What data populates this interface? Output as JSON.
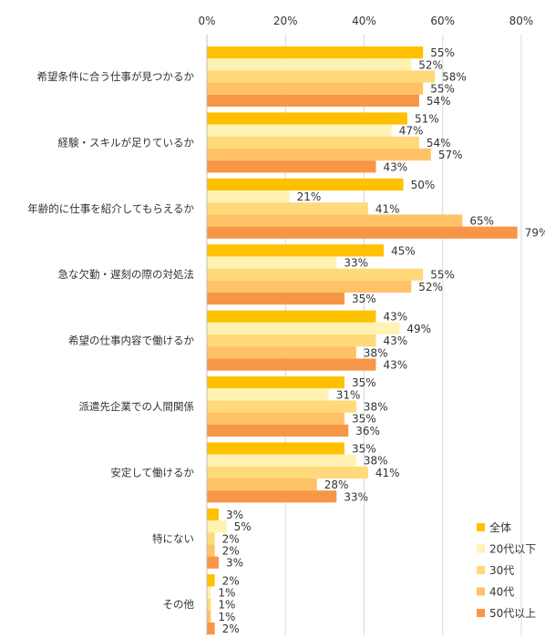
{
  "chart_data": {
    "type": "bar",
    "orientation": "horizontal",
    "title": "",
    "xlabel": "",
    "ylabel": "",
    "xlim": [
      0,
      80
    ],
    "x_ticks": [
      {
        "value": 0,
        "label": "0%"
      },
      {
        "value": 20,
        "label": "20%"
      },
      {
        "value": 40,
        "label": "40%"
      },
      {
        "value": 60,
        "label": "60%"
      },
      {
        "value": 80,
        "label": "80%"
      }
    ],
    "grid": true,
    "axis_position": "top",
    "legend_position": "bottom-right",
    "categories": [
      "希望条件に合う仕事が見つかるか",
      "経験・スキルが足りているか",
      "年齢的に仕事を紹介してもらえるか",
      "急な欠勤・遅刻の際の対処法",
      "希望の仕事内容で働けるか",
      "派遣先企業での人間関係",
      "安定して働けるか",
      "特にない",
      "その他"
    ],
    "series": [
      {
        "name": "全体",
        "color": "#FFC000",
        "values": [
          55,
          51,
          50,
          45,
          43,
          35,
          35,
          3,
          2
        ]
      },
      {
        "name": "20代以下",
        "color": "#FFF2B3",
        "values": [
          52,
          47,
          21,
          33,
          49,
          31,
          38,
          5,
          1
        ]
      },
      {
        "name": "30代",
        "color": "#FFD97A",
        "values": [
          58,
          54,
          41,
          55,
          43,
          38,
          41,
          2,
          1
        ]
      },
      {
        "name": "40代",
        "color": "#FFC266",
        "values": [
          55,
          57,
          65,
          52,
          38,
          35,
          28,
          2,
          1
        ]
      },
      {
        "name": "50代以上",
        "color": "#F79646",
        "values": [
          54,
          43,
          79,
          35,
          43,
          36,
          33,
          3,
          2
        ]
      }
    ],
    "value_suffix": "%"
  }
}
